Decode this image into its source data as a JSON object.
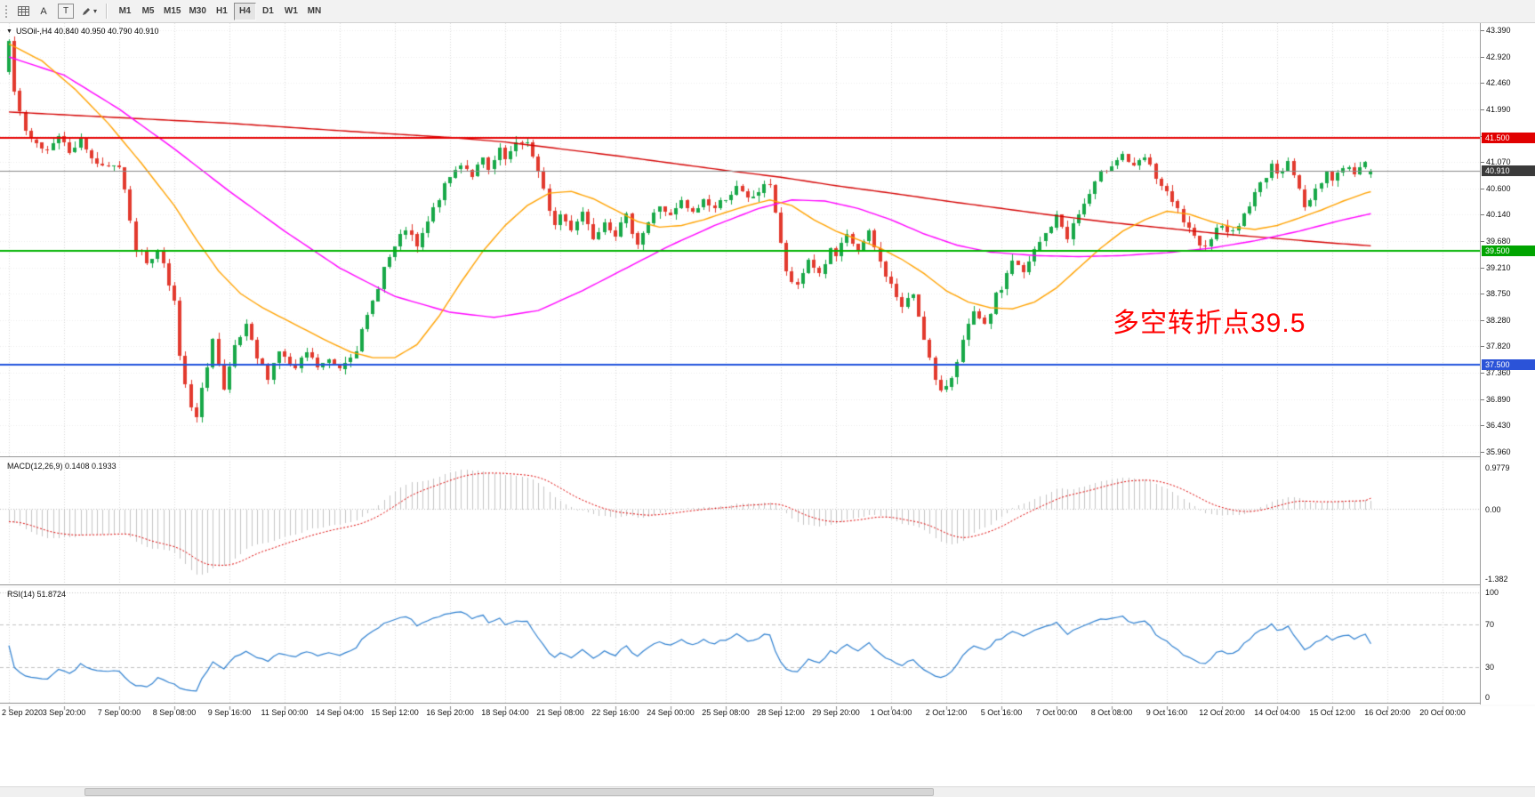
{
  "toolbar": {
    "tool_a": "A",
    "tool_t": "T",
    "timeframes": [
      "M1",
      "M5",
      "M15",
      "M30",
      "H1",
      "H4",
      "D1",
      "W1",
      "MN"
    ],
    "active_timeframe": "H4"
  },
  "chart": {
    "title_icon": "▼",
    "symbol_title": "USOil-,H4 40.840 40.950 40.790 40.910",
    "annotation": {
      "text": "多空转折点39.5",
      "color": "#ff0000"
    },
    "price_axis_labels": [
      "43.390",
      "42.920",
      "42.460",
      "41.990",
      "41.530",
      "41.070",
      "40.600",
      "40.140",
      "39.680",
      "39.210",
      "38.750",
      "38.280",
      "37.820",
      "37.360",
      "36.890",
      "36.430",
      "35.960"
    ],
    "time_axis_labels": [
      "2 Sep 2020",
      "3 Sep 20:00",
      "7 Sep 00:00",
      "8 Sep 08:00",
      "9 Sep 16:00",
      "11 Sep 00:00",
      "14 Sep 04:00",
      "15 Sep 12:00",
      "16 Sep 20:00",
      "18 Sep 04:00",
      "21 Sep 08:00",
      "22 Sep 16:00",
      "24 Sep 00:00",
      "25 Sep 08:00",
      "28 Sep 12:00",
      "29 Sep 20:00",
      "1 Oct 04:00",
      "2 Oct 12:00",
      "5 Oct 16:00",
      "7 Oct 00:00",
      "8 Oct 08:00",
      "9 Oct 16:00",
      "12 Oct 20:00",
      "14 Oct 04:00",
      "15 Oct 12:00",
      "16 Oct 20:00",
      "20 Oct 00:00"
    ]
  },
  "macd_pane": {
    "label": "MACD(12,26,9) 0.1408 0.1933",
    "axis_max": "0.9779",
    "axis_zero": "0.00",
    "axis_min": "-1.382"
  },
  "rsi_pane": {
    "label": "RSI(14) 51.8724",
    "axis_max": "100",
    "axis_upper": "70",
    "axis_lower": "30",
    "axis_min": "0"
  },
  "chart_data": {
    "type": "candlestick",
    "symbol": "USOil-",
    "timeframe": "H4",
    "visible_candles": 248,
    "ohlc_current": {
      "open": 40.84,
      "high": 40.95,
      "low": 40.79,
      "close": 40.91
    },
    "y_range": {
      "max": 43.39,
      "min": 35.96
    },
    "levels": [
      {
        "name": "resistance-41500",
        "label": "41.500",
        "price": 41.5,
        "line_color": "#e60000",
        "badge_color": "#e10000",
        "width": 2
      },
      {
        "name": "support-39500",
        "label": "39.500",
        "price": 39.5,
        "line_color": "#00b300",
        "badge_color": "#00a400",
        "width": 2
      },
      {
        "name": "support-37500",
        "label": "37.500",
        "price": 37.5,
        "line_color": "#2153dd",
        "badge_color": "#2b53d8",
        "width": 2
      },
      {
        "name": "bid-40910",
        "label": "40.910",
        "price": 40.91,
        "line_color": "#8a8a8a",
        "badge_color": "#3a3a3a",
        "width": 1
      }
    ],
    "close_keyframes": [
      [
        0,
        43.2
      ],
      [
        1,
        42.3
      ],
      [
        3,
        41.55
      ],
      [
        6,
        41.25
      ],
      [
        9,
        41.55
      ],
      [
        11,
        41.3
      ],
      [
        13,
        41.45
      ],
      [
        15,
        41.15
      ],
      [
        17,
        40.95
      ],
      [
        20,
        41.0
      ],
      [
        21,
        40.6
      ],
      [
        23,
        39.55
      ],
      [
        25,
        39.3
      ],
      [
        27,
        39.5
      ],
      [
        28,
        39.3
      ],
      [
        30,
        38.6
      ],
      [
        31,
        37.6
      ],
      [
        33,
        36.7
      ],
      [
        34,
        36.55
      ],
      [
        36,
        37.5
      ],
      [
        37,
        37.95
      ],
      [
        39,
        37.0
      ],
      [
        41,
        37.8
      ],
      [
        43,
        38.15
      ],
      [
        45,
        37.6
      ],
      [
        47,
        37.3
      ],
      [
        49,
        37.75
      ],
      [
        50,
        37.6
      ],
      [
        52,
        37.4
      ],
      [
        54,
        37.7
      ],
      [
        56,
        37.45
      ],
      [
        58,
        37.55
      ],
      [
        60,
        37.45
      ],
      [
        63,
        37.8
      ],
      [
        66,
        38.6
      ],
      [
        68,
        39.2
      ],
      [
        70,
        39.55
      ],
      [
        72,
        39.9
      ],
      [
        74,
        39.55
      ],
      [
        76,
        40.0
      ],
      [
        78,
        40.45
      ],
      [
        80,
        40.8
      ],
      [
        82,
        41.05
      ],
      [
        84,
        40.85
      ],
      [
        86,
        41.1
      ],
      [
        87,
        40.9
      ],
      [
        89,
        41.25
      ],
      [
        90,
        41.1
      ],
      [
        92,
        41.35
      ],
      [
        94,
        41.45
      ],
      [
        95,
        41.15
      ],
      [
        97,
        40.55
      ],
      [
        99,
        39.95
      ],
      [
        100,
        40.15
      ],
      [
        102,
        39.9
      ],
      [
        104,
        40.2
      ],
      [
        106,
        39.75
      ],
      [
        108,
        40.05
      ],
      [
        110,
        39.8
      ],
      [
        112,
        40.1
      ],
      [
        114,
        39.65
      ],
      [
        116,
        40.0
      ],
      [
        118,
        40.3
      ],
      [
        120,
        40.1
      ],
      [
        122,
        40.35
      ],
      [
        124,
        40.15
      ],
      [
        126,
        40.4
      ],
      [
        128,
        40.25
      ],
      [
        130,
        40.45
      ],
      [
        132,
        40.6
      ],
      [
        134,
        40.4
      ],
      [
        136,
        40.55
      ],
      [
        138,
        40.7
      ],
      [
        139,
        40.2
      ],
      [
        141,
        39.1
      ],
      [
        143,
        38.85
      ],
      [
        145,
        39.35
      ],
      [
        147,
        39.1
      ],
      [
        149,
        39.5
      ],
      [
        150,
        39.4
      ],
      [
        152,
        39.75
      ],
      [
        154,
        39.5
      ],
      [
        156,
        39.8
      ],
      [
        158,
        39.3
      ],
      [
        160,
        38.9
      ],
      [
        162,
        38.5
      ],
      [
        164,
        38.75
      ],
      [
        166,
        38.0
      ],
      [
        168,
        37.2
      ],
      [
        169,
        36.98
      ],
      [
        171,
        37.3
      ],
      [
        173,
        37.9
      ],
      [
        175,
        38.4
      ],
      [
        177,
        38.15
      ],
      [
        179,
        38.7
      ],
      [
        180,
        38.85
      ],
      [
        182,
        39.35
      ],
      [
        184,
        39.1
      ],
      [
        186,
        39.5
      ],
      [
        188,
        39.8
      ],
      [
        190,
        40.1
      ],
      [
        192,
        39.75
      ],
      [
        194,
        40.15
      ],
      [
        196,
        40.5
      ],
      [
        198,
        40.85
      ],
      [
        200,
        41.05
      ],
      [
        202,
        41.2
      ],
      [
        204,
        40.95
      ],
      [
        206,
        41.15
      ],
      [
        208,
        40.8
      ],
      [
        210,
        40.5
      ],
      [
        212,
        40.2
      ],
      [
        214,
        39.85
      ],
      [
        216,
        39.55
      ],
      [
        218,
        39.75
      ],
      [
        220,
        40.0
      ],
      [
        222,
        39.8
      ],
      [
        224,
        40.15
      ],
      [
        226,
        40.5
      ],
      [
        228,
        40.85
      ],
      [
        229,
        41.05
      ],
      [
        230,
        40.8
      ],
      [
        232,
        41.15
      ],
      [
        234,
        40.55
      ],
      [
        235,
        40.25
      ],
      [
        237,
        40.6
      ],
      [
        239,
        40.9
      ],
      [
        240,
        40.75
      ],
      [
        242,
        41.0
      ],
      [
        244,
        40.88
      ],
      [
        246,
        41.02
      ],
      [
        247,
        40.91
      ]
    ],
    "moving_averages": [
      {
        "name": "ma-slow-red",
        "color": "#d40000",
        "keyframes": [
          [
            0,
            41.95
          ],
          [
            20,
            41.85
          ],
          [
            40,
            41.75
          ],
          [
            60,
            41.62
          ],
          [
            80,
            41.5
          ],
          [
            90,
            41.42
          ],
          [
            100,
            41.3
          ],
          [
            110,
            41.18
          ],
          [
            120,
            41.05
          ],
          [
            130,
            40.92
          ],
          [
            140,
            40.8
          ],
          [
            150,
            40.65
          ],
          [
            160,
            40.52
          ],
          [
            170,
            40.38
          ],
          [
            180,
            40.25
          ],
          [
            190,
            40.12
          ],
          [
            200,
            40.0
          ],
          [
            210,
            39.9
          ],
          [
            220,
            39.8
          ],
          [
            230,
            39.72
          ],
          [
            240,
            39.64
          ],
          [
            250,
            39.57
          ]
        ]
      },
      {
        "name": "ma-mid-magenta",
        "color": "#ff00ff",
        "keyframes": [
          [
            0,
            42.92
          ],
          [
            10,
            42.6
          ],
          [
            20,
            42.0
          ],
          [
            30,
            41.3
          ],
          [
            40,
            40.55
          ],
          [
            50,
            39.85
          ],
          [
            60,
            39.2
          ],
          [
            70,
            38.7
          ],
          [
            80,
            38.42
          ],
          [
            88,
            38.33
          ],
          [
            96,
            38.45
          ],
          [
            104,
            38.8
          ],
          [
            112,
            39.2
          ],
          [
            120,
            39.6
          ],
          [
            128,
            39.95
          ],
          [
            136,
            40.25
          ],
          [
            142,
            40.4
          ],
          [
            148,
            40.38
          ],
          [
            154,
            40.25
          ],
          [
            160,
            40.05
          ],
          [
            166,
            39.8
          ],
          [
            172,
            39.6
          ],
          [
            178,
            39.48
          ],
          [
            186,
            39.42
          ],
          [
            194,
            39.4
          ],
          [
            202,
            39.42
          ],
          [
            210,
            39.47
          ],
          [
            218,
            39.55
          ],
          [
            226,
            39.68
          ],
          [
            234,
            39.85
          ],
          [
            242,
            40.05
          ],
          [
            250,
            40.22
          ]
        ]
      },
      {
        "name": "ma-fast-orange",
        "color": "#ffa200",
        "keyframes": [
          [
            0,
            43.15
          ],
          [
            6,
            42.85
          ],
          [
            12,
            42.35
          ],
          [
            18,
            41.75
          ],
          [
            24,
            41.05
          ],
          [
            30,
            40.3
          ],
          [
            34,
            39.7
          ],
          [
            38,
            39.15
          ],
          [
            42,
            38.75
          ],
          [
            46,
            38.5
          ],
          [
            50,
            38.3
          ],
          [
            54,
            38.1
          ],
          [
            58,
            37.9
          ],
          [
            62,
            37.72
          ],
          [
            66,
            37.62
          ],
          [
            70,
            37.62
          ],
          [
            74,
            37.85
          ],
          [
            78,
            38.35
          ],
          [
            82,
            38.95
          ],
          [
            86,
            39.5
          ],
          [
            90,
            39.95
          ],
          [
            94,
            40.3
          ],
          [
            98,
            40.52
          ],
          [
            102,
            40.55
          ],
          [
            106,
            40.42
          ],
          [
            110,
            40.22
          ],
          [
            114,
            40.02
          ],
          [
            118,
            39.92
          ],
          [
            122,
            39.95
          ],
          [
            126,
            40.05
          ],
          [
            130,
            40.18
          ],
          [
            134,
            40.3
          ],
          [
            138,
            40.4
          ],
          [
            142,
            40.3
          ],
          [
            146,
            40.05
          ],
          [
            150,
            39.85
          ],
          [
            154,
            39.7
          ],
          [
            158,
            39.55
          ],
          [
            162,
            39.35
          ],
          [
            166,
            39.1
          ],
          [
            170,
            38.8
          ],
          [
            174,
            38.6
          ],
          [
            178,
            38.5
          ],
          [
            182,
            38.48
          ],
          [
            186,
            38.6
          ],
          [
            190,
            38.85
          ],
          [
            194,
            39.2
          ],
          [
            198,
            39.55
          ],
          [
            202,
            39.85
          ],
          [
            206,
            40.05
          ],
          [
            210,
            40.2
          ],
          [
            214,
            40.15
          ],
          [
            218,
            40.02
          ],
          [
            222,
            39.92
          ],
          [
            226,
            39.88
          ],
          [
            230,
            39.95
          ],
          [
            234,
            40.08
          ],
          [
            238,
            40.22
          ],
          [
            242,
            40.38
          ],
          [
            246,
            40.52
          ],
          [
            250,
            40.62
          ]
        ]
      }
    ],
    "indicators": {
      "macd": {
        "fast": 12,
        "slow": 26,
        "signal": 9,
        "current": [
          0.1408,
          0.1933
        ]
      },
      "rsi": {
        "period": 14,
        "current": 51.8724
      }
    },
    "synth": {
      "seed": 7,
      "noise_close": 0.07,
      "noise_wick": 0.11,
      "warmup_bars": 30,
      "warmup_start": 44.0,
      "warmup_end": 42.6
    },
    "colors": {
      "up": "#18a848",
      "down": "#e23a2e",
      "macd_hist": "#c4c4c4",
      "macd_signal": "#dd0000",
      "rsi_line": "#2f80d0",
      "grid": "#d6d6d6",
      "bid_line": "#8a8a8a"
    }
  }
}
